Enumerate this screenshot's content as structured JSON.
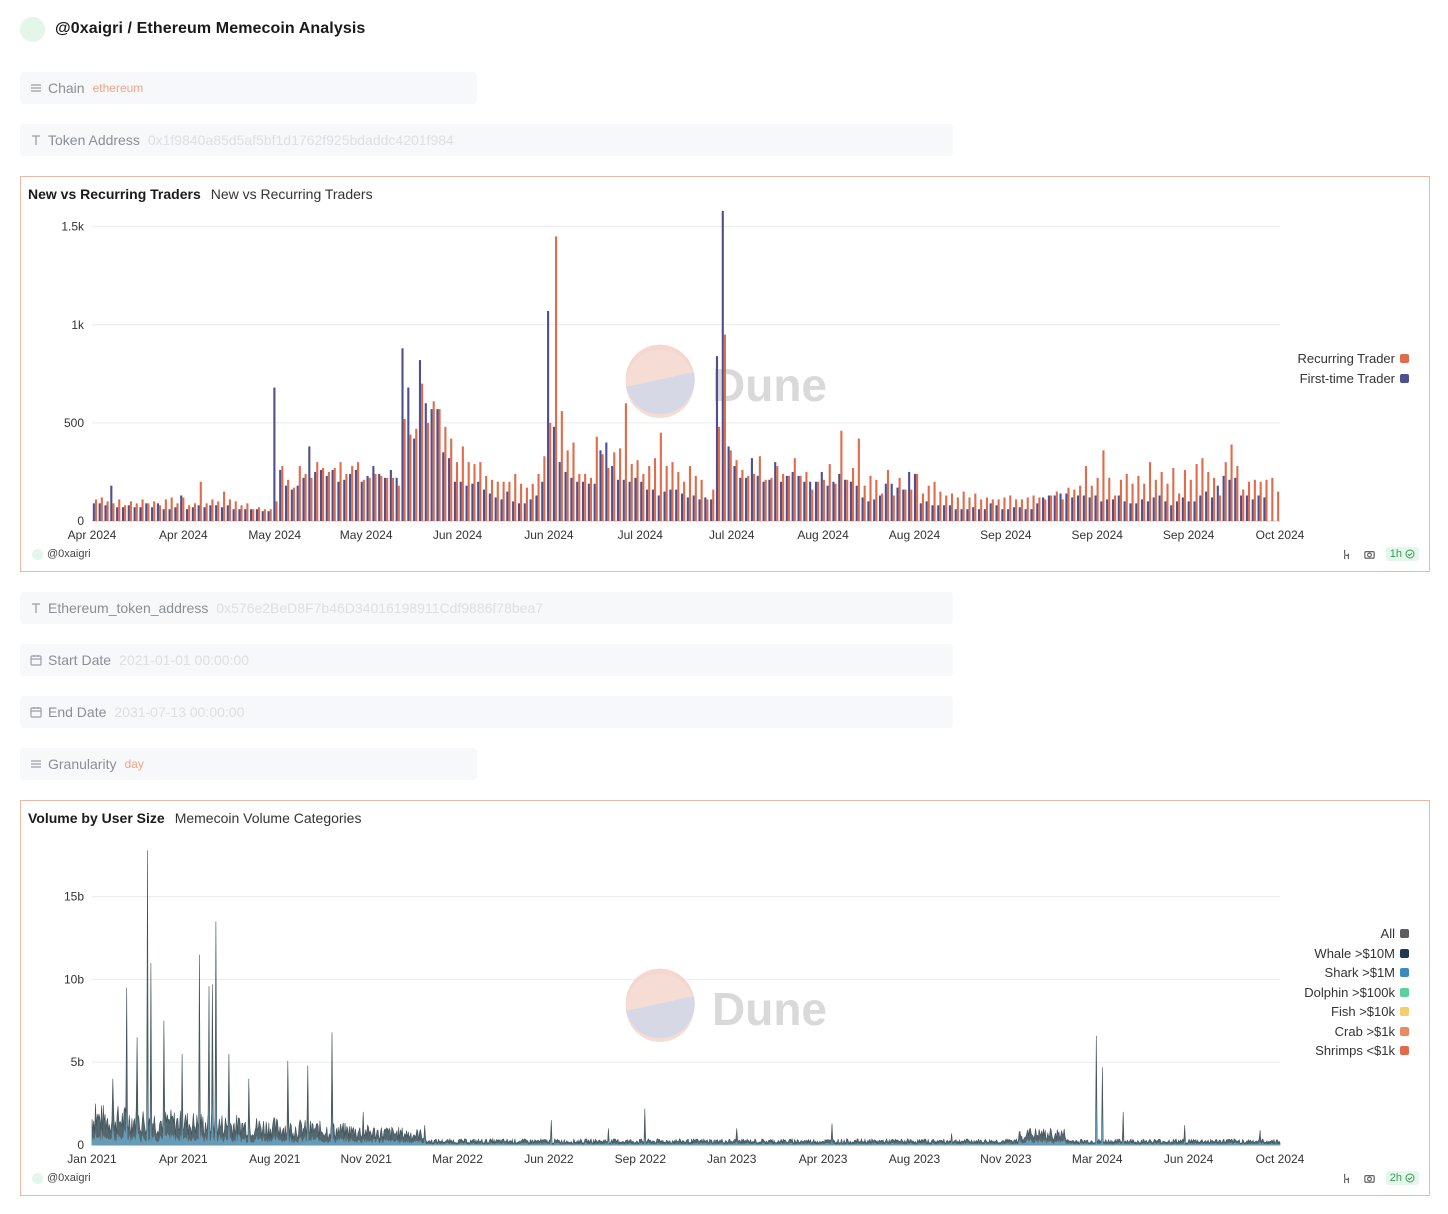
{
  "header": {
    "title": "@0xaigri / Ethereum Memecoin Analysis"
  },
  "params": {
    "chain": {
      "label": "Chain",
      "value": "ethereum"
    },
    "token_address": {
      "label": "Token Address",
      "value": "0x1f9840a85d5af5bf1d1762f925bdaddc4201f984"
    },
    "eth_token_address": {
      "label": "Ethereum_token_address",
      "value": "0x576e2BeD8F7b46D34016198911Cdf9886f78bea7"
    },
    "start_date": {
      "label": "Start Date",
      "value": "2021-01-01 00:00:00"
    },
    "end_date": {
      "label": "End Date",
      "value": "2031-07-13 00:00:00"
    },
    "granularity": {
      "label": "Granularity",
      "value": "day"
    }
  },
  "panel1": {
    "title": "New vs Recurring Traders",
    "subtitle": "New vs Recurring Traders",
    "author": "@0xaigri",
    "refresh": "1h",
    "watermark": "Dune"
  },
  "panel2": {
    "title": "Volume by User Size",
    "subtitle": "Memecoin Volume Categories",
    "author": "@0xaigri",
    "refresh": "2h",
    "watermark": "Dune"
  },
  "chart_data": [
    {
      "type": "bar",
      "title": "New vs Recurring Traders",
      "x_tick_labels": [
        "Apr 2024",
        "Apr 2024",
        "May 2024",
        "May 2024",
        "Jun 2024",
        "Jun 2024",
        "Jul 2024",
        "Jul 2024",
        "Aug 2024",
        "Aug 2024",
        "Sep 2024",
        "Sep 2024",
        "Sep 2024",
        "Oct 2024"
      ],
      "y_tick_labels": [
        "0",
        "500",
        "1k",
        "1.5k"
      ],
      "ylim": [
        0,
        1600
      ],
      "x_range": [
        "2024-04-01",
        "2024-10-03"
      ],
      "legend_position": "right",
      "colors": {
        "recurring": "#e06c4c",
        "first_time": "#4e4f8f"
      },
      "series": [
        {
          "name": "Recurring Trader",
          "color": "#e06c4c",
          "values": [
            110,
            120,
            100,
            90,
            110,
            80,
            100,
            90,
            110,
            90,
            100,
            80,
            110,
            120,
            90,
            120,
            80,
            90,
            200,
            90,
            110,
            100,
            150,
            110,
            100,
            80,
            90,
            60,
            70,
            60,
            60,
            100,
            280,
            210,
            170,
            280,
            240,
            220,
            300,
            270,
            250,
            270,
            300,
            240,
            280,
            300,
            210,
            220,
            240,
            230,
            220,
            220,
            180,
            520,
            440,
            470,
            700,
            500,
            610,
            570,
            480,
            420,
            300,
            380,
            300,
            290,
            300,
            230,
            210,
            200,
            200,
            200,
            240,
            190,
            170,
            190,
            240,
            330,
            500,
            1450,
            560,
            360,
            400,
            240,
            240,
            220,
            430,
            340,
            270,
            350,
            370,
            600,
            290,
            310,
            240,
            280,
            320,
            450,
            280,
            300,
            250,
            200,
            280,
            230,
            210,
            110,
            160,
            480,
            950,
            360,
            310,
            260,
            230,
            240,
            330,
            210,
            220,
            280,
            240,
            230,
            320,
            230,
            250,
            160,
            200,
            210,
            290,
            190,
            460,
            210,
            270,
            420,
            180,
            230,
            210,
            140,
            260,
            130,
            220,
            160,
            160,
            240,
            140,
            180,
            200,
            150,
            130,
            140,
            120,
            150,
            120,
            140,
            110,
            120,
            110,
            110,
            120,
            130,
            110,
            110,
            120,
            130,
            120,
            110,
            130,
            150,
            110,
            170,
            160,
            180,
            280,
            180,
            220,
            360,
            220,
            130,
            210,
            240,
            190,
            230,
            190,
            300,
            210,
            250,
            190,
            270,
            140,
            260,
            210,
            290,
            320,
            250,
            220,
            130,
            300,
            390,
            280,
            160,
            200,
            210,
            200,
            210,
            220,
            150
          ]
        },
        {
          "name": "First-time Trader",
          "color": "#4e4f8f",
          "values": [
            90,
            90,
            80,
            180,
            70,
            70,
            80,
            70,
            70,
            90,
            70,
            90,
            60,
            60,
            70,
            130,
            60,
            70,
            80,
            70,
            80,
            80,
            70,
            80,
            60,
            60,
            60,
            60,
            60,
            50,
            50,
            680,
            260,
            180,
            160,
            180,
            220,
            380,
            250,
            260,
            230,
            260,
            200,
            210,
            240,
            260,
            200,
            230,
            280,
            240,
            220,
            260,
            220,
            880,
            680,
            420,
            820,
            600,
            570,
            570,
            350,
            320,
            200,
            200,
            180,
            190,
            200,
            160,
            140,
            120,
            110,
            150,
            100,
            90,
            90,
            110,
            130,
            200,
            1070,
            480,
            300,
            250,
            220,
            200,
            200,
            190,
            190,
            360,
            400,
            280,
            210,
            210,
            200,
            220,
            200,
            160,
            160,
            130,
            150,
            160,
            160,
            140,
            120,
            130,
            110,
            120,
            110,
            840,
            1580,
            380,
            280,
            220,
            220,
            320,
            230,
            200,
            210,
            300,
            200,
            230,
            250,
            230,
            200,
            200,
            200,
            250,
            180,
            200,
            240,
            210,
            200,
            180,
            120,
            100,
            110,
            130,
            190,
            190,
            170,
            160,
            250,
            240,
            90,
            100,
            80,
            80,
            80,
            80,
            60,
            60,
            60,
            70,
            60,
            60,
            90,
            80,
            60,
            60,
            70,
            70,
            60,
            60,
            90,
            120,
            130,
            130,
            140,
            140,
            120,
            130,
            130,
            120,
            130,
            100,
            110,
            110,
            130,
            100,
            90,
            90,
            110,
            100,
            120,
            130,
            100,
            80,
            100,
            120,
            100,
            100,
            130,
            150,
            120,
            180,
            230,
            210,
            220,
            130,
            130,
            110,
            130,
            120
          ]
        }
      ]
    },
    {
      "type": "area",
      "title": "Volume by User Size",
      "x_tick_labels": [
        "Jan 2021",
        "Apr 2021",
        "Aug 2021",
        "Nov 2021",
        "Mar 2022",
        "Jun 2022",
        "Sep 2022",
        "Jan 2023",
        "Apr 2023",
        "Aug 2023",
        "Nov 2023",
        "Mar 2024",
        "Jun 2024",
        "Oct 2024"
      ],
      "y_tick_labels": [
        "0",
        "5b",
        "10b",
        "15b"
      ],
      "ylim": [
        0,
        18000000000
      ],
      "x_range": [
        "2021-01-01",
        "2024-10-03"
      ],
      "legend_position": "right",
      "series": [
        {
          "name": "All",
          "color": "#5b5f63"
        },
        {
          "name": "Whale >$10M",
          "color": "#1e3b4d"
        },
        {
          "name": "Shark >$1M",
          "color": "#3c8bbf"
        },
        {
          "name": "Dolphin >$100k",
          "color": "#5cd09b"
        },
        {
          "name": "Fish >$10k",
          "color": "#f5cf6b"
        },
        {
          "name": "Crab >$1k",
          "color": "#e98a5f"
        },
        {
          "name": "Shrimps <$1k",
          "color": "#e06c4c"
        }
      ],
      "peaks": [
        {
          "date": "2021-01-05",
          "value": 2500000000
        },
        {
          "date": "2021-01-25",
          "value": 4000000000
        },
        {
          "date": "2021-02-10",
          "value": 9500000000
        },
        {
          "date": "2021-02-22",
          "value": 6500000000
        },
        {
          "date": "2021-03-06",
          "value": 17800000000
        },
        {
          "date": "2021-03-10",
          "value": 11000000000
        },
        {
          "date": "2021-03-25",
          "value": 7500000000
        },
        {
          "date": "2021-04-15",
          "value": 5500000000
        },
        {
          "date": "2021-05-05",
          "value": 11500000000
        },
        {
          "date": "2021-05-16",
          "value": 9600000000
        },
        {
          "date": "2021-05-20",
          "value": 9700000000
        },
        {
          "date": "2021-05-24",
          "value": 13500000000
        },
        {
          "date": "2021-06-08",
          "value": 5500000000
        },
        {
          "date": "2021-07-01",
          "value": 4000000000
        },
        {
          "date": "2021-08-15",
          "value": 5100000000
        },
        {
          "date": "2021-09-07",
          "value": 4800000000
        },
        {
          "date": "2021-10-05",
          "value": 6800000000
        },
        {
          "date": "2021-11-10",
          "value": 2000000000
        },
        {
          "date": "2022-01-20",
          "value": 1200000000
        },
        {
          "date": "2022-06-15",
          "value": 1500000000
        },
        {
          "date": "2022-08-20",
          "value": 1000000000
        },
        {
          "date": "2022-10-01",
          "value": 2200000000
        },
        {
          "date": "2023-01-15",
          "value": 1000000000
        },
        {
          "date": "2023-05-05",
          "value": 1300000000
        },
        {
          "date": "2023-09-20",
          "value": 700000000
        },
        {
          "date": "2023-12-20",
          "value": 1000000000
        },
        {
          "date": "2024-03-05",
          "value": 6600000000
        },
        {
          "date": "2024-03-12",
          "value": 4700000000
        },
        {
          "date": "2024-04-05",
          "value": 2000000000
        },
        {
          "date": "2024-06-15",
          "value": 1200000000
        },
        {
          "date": "2024-09-10",
          "value": 900000000
        }
      ]
    }
  ]
}
